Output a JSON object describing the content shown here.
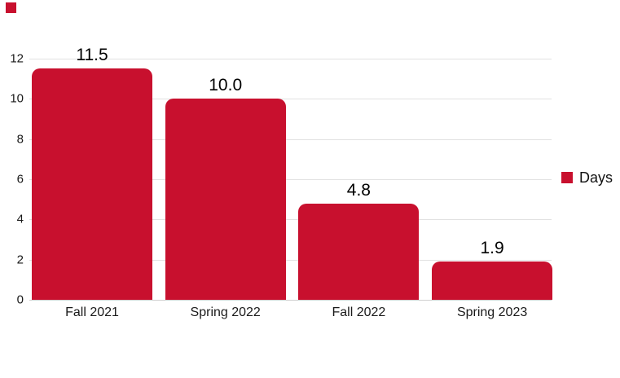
{
  "brand_mark": {
    "color": "#C8102E"
  },
  "chart_data": {
    "type": "bar",
    "title": "",
    "xlabel": "",
    "ylabel": "",
    "categories": [
      "Fall 2021",
      "Spring 2022",
      "Fall 2022",
      "Spring 2023"
    ],
    "series": [
      {
        "name": "Days",
        "values": [
          11.5,
          10.0,
          4.8,
          1.9
        ]
      }
    ],
    "value_labels": [
      "11.5",
      "10.0",
      "4.8",
      "1.9"
    ],
    "ylim": [
      0,
      12
    ],
    "yticks": [
      0,
      2,
      4,
      6,
      8,
      10,
      12
    ],
    "grid": "horizontal",
    "legend_position": "middle-right",
    "colors": {
      "bar": "#C8102E",
      "gridline": "#E2E2E2",
      "axis_line": "#CFCFCF",
      "value_label": "#000000",
      "tick_label": "#1A1A1A",
      "category_label": "#1A1A1A"
    }
  }
}
